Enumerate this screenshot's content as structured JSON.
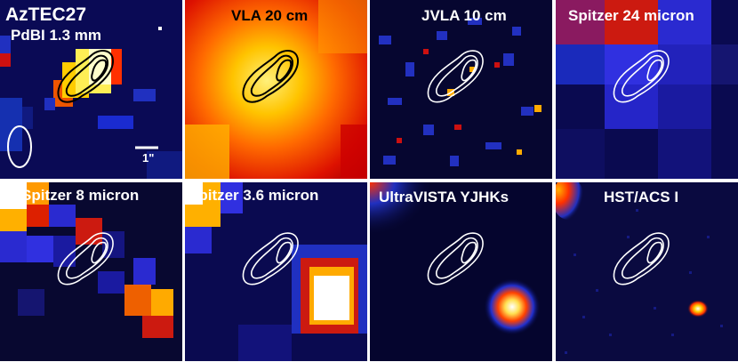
{
  "panels": [
    {
      "title": "AzTEC27",
      "subtitle": "PdBI 1.3 mm",
      "scale_label": "1\"",
      "label_color": "#ffffff"
    },
    {
      "title": "VLA 20 cm",
      "label_color": "#000000"
    },
    {
      "title": "JVLA 10 cm",
      "label_color": "#ffffff"
    },
    {
      "title": "Spitzer 24 micron",
      "label_color": "#ffffff"
    },
    {
      "title": "Spitzer 8 micron",
      "label_color": "#ffffff"
    },
    {
      "title": "Spitzer 3.6 micron",
      "label_color": "#ffffff"
    },
    {
      "title": "UltraVISTA YJHKs",
      "label_color": "#ffffff"
    },
    {
      "title": "HST/ACS I",
      "label_color": "#ffffff"
    }
  ],
  "colors": {
    "contour_dark": "#000000",
    "contour_light": "#ffffff",
    "background_dark": "#0a0a3a",
    "hot": "#ffffff",
    "warm": "#ffd000",
    "mid": "#ff3000",
    "cool": "#1a2bd0"
  }
}
